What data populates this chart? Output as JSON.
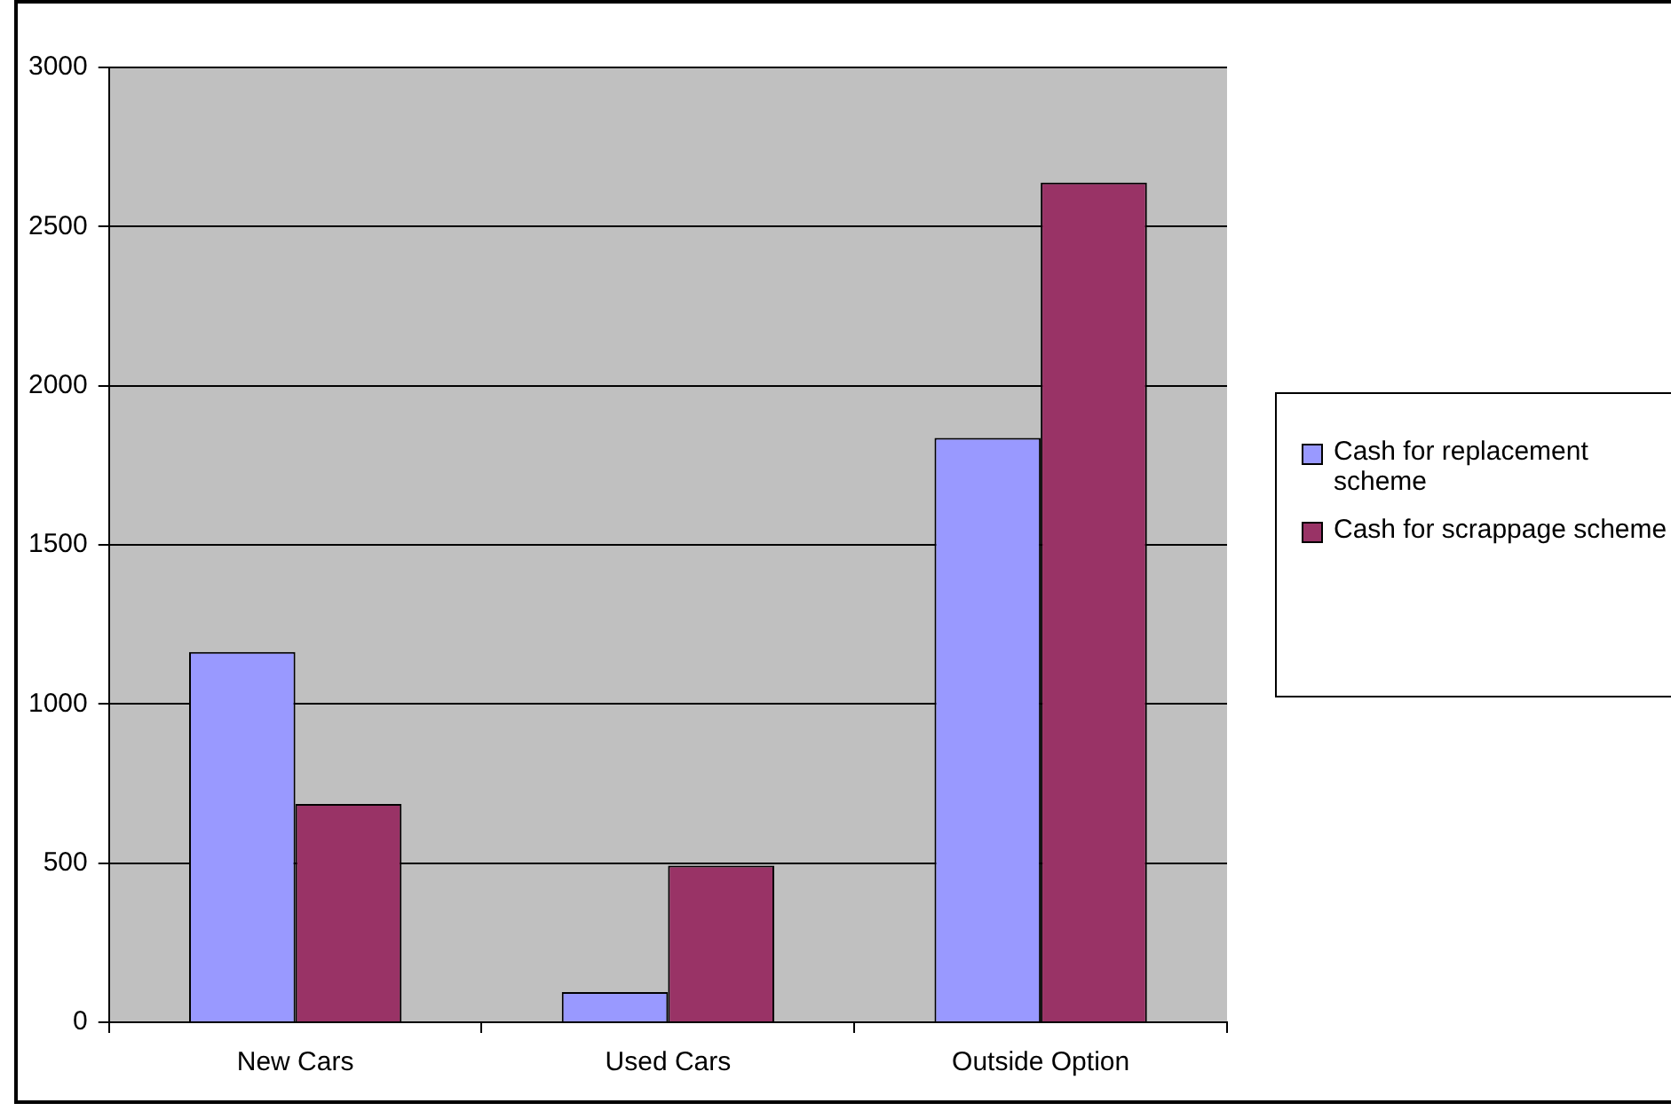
{
  "chart_data": {
    "type": "bar",
    "categories": [
      "New Cars",
      "Used Cars",
      "Outside Option"
    ],
    "series": [
      {
        "name": "Cash for replacement scheme",
        "color": "#9999ff",
        "values": [
          1163,
          95,
          1836
        ]
      },
      {
        "name": "Cash for scrappage scheme",
        "color": "#993366",
        "values": [
          686,
          492,
          2638
        ]
      }
    ],
    "ylim": [
      0,
      3000
    ],
    "yticks": [
      0,
      500,
      1000,
      1500,
      2000,
      2500,
      3000
    ],
    "grid": "y",
    "legend": "right"
  }
}
